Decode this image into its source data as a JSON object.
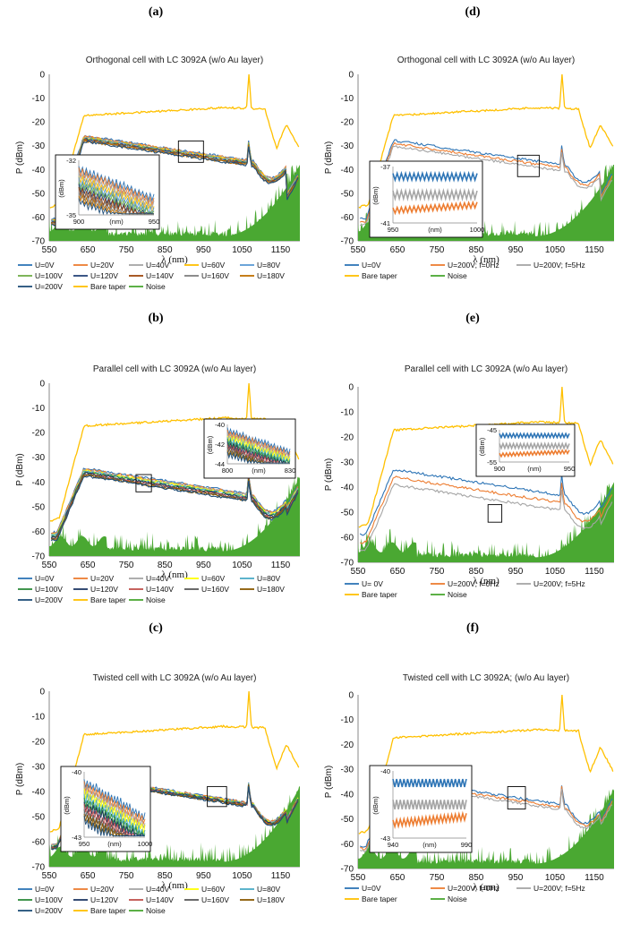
{
  "chart_data": [
    {
      "id": "a",
      "panel_label": "(a)",
      "type": "line",
      "title": "Orthogonal cell with LC 3092A  (w/o Au layer)",
      "xlabel": "λ (nm)",
      "ylabel": "P (dBm)",
      "xlim": [
        550,
        1200
      ],
      "ylim": [
        -70,
        0
      ],
      "xticks": [
        "550",
        "650",
        "750",
        "850",
        "950",
        "1050",
        "1150"
      ],
      "yticks": [
        "0",
        "-10",
        "-20",
        "-30",
        "-40",
        "-50",
        "-60",
        "-70"
      ],
      "peak_nm": 1070,
      "curve_spread_db": 2.3,
      "signal_top_dbm": -27,
      "series": [
        {
          "name": "U=0V",
          "color": "#2e75b6"
        },
        {
          "name": "U=20V",
          "color": "#ed7d31"
        },
        {
          "name": "U=40V",
          "color": "#a5a5a5"
        },
        {
          "name": "U=60V",
          "color": "#ffc000"
        },
        {
          "name": "U=80V",
          "color": "#5b9bd5"
        },
        {
          "name": "U=100V",
          "color": "#70ad47"
        },
        {
          "name": "U=120V",
          "color": "#264478"
        },
        {
          "name": "U=140V",
          "color": "#9e480e"
        },
        {
          "name": "U=160V",
          "color": "#7f7f7f"
        },
        {
          "name": "U=180V",
          "color": "#c07000"
        },
        {
          "name": "U=200V",
          "color": "#1f4e79"
        },
        {
          "name": "Bare taper",
          "color": "#ffc000"
        },
        {
          "name": "Noise",
          "color": "#4aa832"
        }
      ],
      "inset": {
        "xticks": [
          "900",
          "950"
        ],
        "yticks": [
          "-32",
          "-35"
        ],
        "xunit": "(nm)",
        "yunit": "(dBm)",
        "xlim": [
          900,
          950
        ],
        "ylim": [
          -35,
          -32
        ]
      }
    },
    {
      "id": "b",
      "panel_label": "(b)",
      "type": "line",
      "title": "Parallel cell with LC 3092A (w/o Au layer)",
      "xlabel": "λ (nm)",
      "ylabel": "P (dBm)",
      "xlim": [
        550,
        1200
      ],
      "ylim": [
        -70,
        0
      ],
      "xticks": [
        "550",
        "650",
        "750",
        "850",
        "950",
        "1050",
        "1150"
      ],
      "yticks": [
        "0",
        "-10",
        "-20",
        "-30",
        "-40",
        "-50",
        "-60",
        "-70"
      ],
      "peak_nm": 1065,
      "curve_spread_db": 3,
      "signal_top_dbm": -36,
      "series": [
        {
          "name": "U=0V",
          "color": "#2e75b6"
        },
        {
          "name": "U=20V",
          "color": "#ed7d31"
        },
        {
          "name": "U=40V",
          "color": "#a5a5a5"
        },
        {
          "name": "U=60V",
          "color": "#ffff00"
        },
        {
          "name": "U=80V",
          "color": "#4bacc6"
        },
        {
          "name": "U=100V",
          "color": "#2e8b3a"
        },
        {
          "name": "U=120V",
          "color": "#1f3864"
        },
        {
          "name": "U=140V",
          "color": "#c0504d"
        },
        {
          "name": "U=160V",
          "color": "#5a5a5a"
        },
        {
          "name": "U=180V",
          "color": "#8b5a00"
        },
        {
          "name": "U=200V",
          "color": "#1f4e79"
        },
        {
          "name": "Bare taper",
          "color": "#ffc000"
        },
        {
          "name": "Noise",
          "color": "#4aa832"
        }
      ],
      "inset": {
        "xticks": [
          "800",
          "830"
        ],
        "yticks": [
          "-40",
          "-42",
          "-44"
        ],
        "xunit": "(nm)",
        "yunit": "(dBm)",
        "xlim": [
          800,
          830
        ],
        "ylim": [
          -44,
          -40
        ]
      }
    },
    {
      "id": "c",
      "panel_label": "(c)",
      "type": "line",
      "title": "Twisted cell  with LC 3092A (w/o Au layer)",
      "xlabel": "λ (nm)",
      "ylabel": "P (dBm)",
      "xlim": [
        550,
        1200
      ],
      "ylim": [
        -70,
        0
      ],
      "xticks": [
        "550",
        "650",
        "750",
        "850",
        "950",
        "1050",
        "1150"
      ],
      "yticks": [
        "0",
        "-10",
        "-20",
        "-30",
        "-40",
        "-50",
        "-60",
        "-70"
      ],
      "peak_nm": 1070,
      "curve_spread_db": 1.5,
      "signal_top_dbm": -35,
      "series": [
        {
          "name": "U=0V",
          "color": "#2e75b6"
        },
        {
          "name": "U=20V",
          "color": "#ed7d31"
        },
        {
          "name": "U=40V",
          "color": "#a5a5a5"
        },
        {
          "name": "U=60V",
          "color": "#ffff00"
        },
        {
          "name": "U=80V",
          "color": "#4bacc6"
        },
        {
          "name": "U=100V",
          "color": "#2e8b3a"
        },
        {
          "name": "U=120V",
          "color": "#1f3864"
        },
        {
          "name": "U=140V",
          "color": "#c0504d"
        },
        {
          "name": "U=160V",
          "color": "#5a5a5a"
        },
        {
          "name": "U=180V",
          "color": "#8b5a00"
        },
        {
          "name": "U=200V",
          "color": "#1f4e79"
        },
        {
          "name": "Bare taper",
          "color": "#ffc000"
        },
        {
          "name": "Noise",
          "color": "#4aa832"
        }
      ],
      "inset": {
        "xticks": [
          "950",
          "1000"
        ],
        "yticks": [
          "-40",
          "-43"
        ],
        "xunit": "(nm)",
        "yunit": "(dBm)",
        "xlim": [
          950,
          1000
        ],
        "ylim": [
          -43,
          -40
        ]
      }
    },
    {
      "id": "d",
      "panel_label": "(d)",
      "type": "line",
      "title": "Orthogonal cell with LC 3092A  (w/o Au layer)",
      "xlabel": "λ (nm)",
      "ylabel": "P (dBm)",
      "xlim": [
        550,
        1200
      ],
      "ylim": [
        -70,
        0
      ],
      "xticks": [
        "550",
        "650",
        "750",
        "850",
        "950",
        "1050",
        "1150"
      ],
      "yticks": [
        "0",
        "-10",
        "-20",
        "-30",
        "-40",
        "-50",
        "-60",
        "-70"
      ],
      "peak_nm": 1060,
      "curve_spread_db": 2.5,
      "signal_top_dbm": -29,
      "series": [
        {
          "name": "U=0V",
          "color": "#2e75b6"
        },
        {
          "name": "U=200V; f=0Hz",
          "color": "#ed7d31"
        },
        {
          "name": "U=200V; f=5Hz",
          "color": "#a5a5a5"
        },
        {
          "name": "Bare taper",
          "color": "#ffc000"
        },
        {
          "name": "Noise",
          "color": "#4aa832"
        }
      ],
      "inset": {
        "xticks": [
          "950",
          "(nm)",
          "1000"
        ],
        "yticks": [
          "-37",
          "-41"
        ],
        "xunit": "",
        "yunit": "(dBm)",
        "xlim": [
          950,
          1000
        ],
        "ylim": [
          -41,
          -37
        ]
      }
    },
    {
      "id": "e",
      "panel_label": "(e)",
      "type": "line",
      "title": "Parallel cell with LC 3092A (w/o Au layer)",
      "xlabel": "λ (nm)",
      "ylabel": "P (dBm)",
      "xlim": [
        550,
        1200
      ],
      "ylim": [
        -70,
        0
      ],
      "xticks": [
        "550",
        "650",
        "750",
        "850",
        "950",
        "1050",
        "1150"
      ],
      "yticks": [
        "0",
        "-10",
        "-20",
        "-30",
        "-40",
        "-50",
        "-60",
        "-70"
      ],
      "peak_nm": 1060,
      "curve_spread_db": 6,
      "signal_top_dbm": -36,
      "series": [
        {
          "name": "U= 0V",
          "color": "#2e75b6"
        },
        {
          "name": "U=200V; f=0Hz",
          "color": "#ed7d31"
        },
        {
          "name": "U=200V; f=5Hz",
          "color": "#a5a5a5"
        },
        {
          "name": "Bare taper",
          "color": "#ffc000"
        },
        {
          "name": "Noise",
          "color": "#4aa832"
        }
      ],
      "inset": {
        "xticks": [
          "900",
          "(nm)",
          "950"
        ],
        "yticks": [
          "-45",
          "-55"
        ],
        "xunit": "",
        "yunit": "(dBm)",
        "xlim": [
          900,
          950
        ],
        "ylim": [
          -55,
          -45
        ]
      }
    },
    {
      "id": "f",
      "panel_label": "(f)",
      "type": "line",
      "title": "Twisted cell with LC 3092A; (w/o Au layer)",
      "xlabel": "λ (nm)",
      "ylabel": "P (dBm)",
      "xlim": [
        550,
        1200
      ],
      "ylim": [
        -70,
        0
      ],
      "xticks": [
        "550",
        "650",
        "750",
        "850",
        "950",
        "1050",
        "1150"
      ],
      "yticks": [
        "0",
        "-10",
        "-20",
        "-30",
        "-40",
        "-50",
        "-60",
        "-70"
      ],
      "peak_nm": 1060,
      "curve_spread_db": 2,
      "signal_top_dbm": -35,
      "series": [
        {
          "name": "U=0V",
          "color": "#2e75b6"
        },
        {
          "name": "U=200V; f=0Hz",
          "color": "#ed7d31"
        },
        {
          "name": "U=200V; f=5Hz",
          "color": "#a5a5a5"
        },
        {
          "name": "Bare taper",
          "color": "#ffc000"
        },
        {
          "name": "Noise",
          "color": "#4aa832"
        }
      ],
      "inset": {
        "xticks": [
          "940",
          "(nm)",
          "990"
        ],
        "yticks": [
          "-40",
          "-43"
        ],
        "xunit": "",
        "yunit": "(dBm)",
        "xlim": [
          940,
          990
        ],
        "ylim": [
          -43,
          -40
        ]
      }
    }
  ]
}
